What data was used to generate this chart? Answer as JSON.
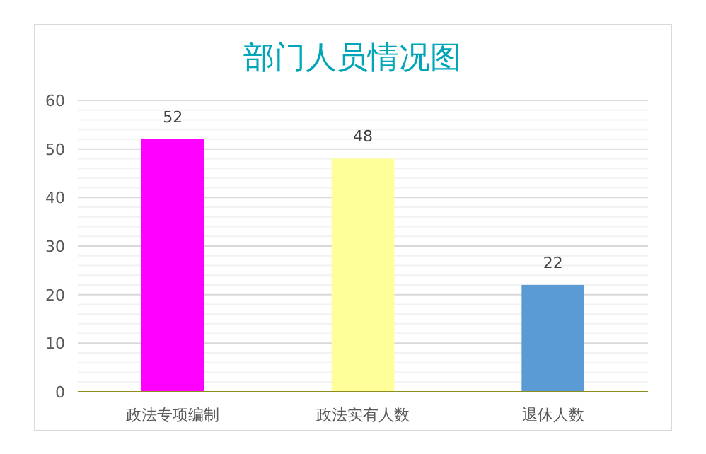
{
  "chart_data": {
    "type": "bar",
    "title": "部门人员情况图",
    "categories": [
      "政法专项编制",
      "政法实有人数",
      "退休人数"
    ],
    "values": [
      52,
      48,
      22
    ],
    "colors": [
      "#ff00ff",
      "#ffff99",
      "#5b9bd5"
    ],
    "ylim": [
      0,
      60
    ],
    "yticks": [
      0,
      10,
      20,
      30,
      40,
      50,
      60
    ],
    "grid": true,
    "data_labels": true
  }
}
